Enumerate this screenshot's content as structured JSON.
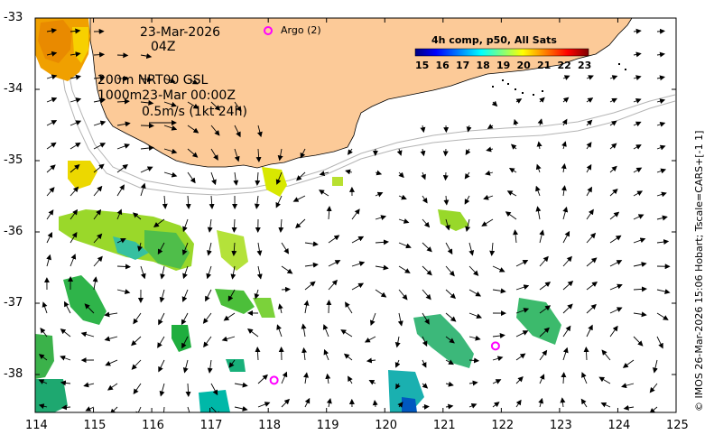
{
  "map": {
    "date_label": "23-Mar-2026",
    "time_label": "04Z",
    "depth_line": "200m  NRT00 GSL",
    "depth_line2": "1000m23-Mar 00:00Z",
    "scale_label": "0.5m/s (1kt 24h)",
    "argo_label": "Argo (2)",
    "colorbar_title": "4h comp, p50, All Sats",
    "colorbar_ticks": [
      "15",
      "16",
      "17",
      "18",
      "19",
      "20",
      "21",
      "22",
      "23"
    ],
    "credit": "© IMOS 26-Mar-2026 15:06 Hobart; Tscale=CARS+[-1 1]",
    "lon_ticks": [
      "114",
      "115",
      "116",
      "117",
      "118",
      "119",
      "120",
      "121",
      "122",
      "123",
      "124",
      "125"
    ],
    "lat_ticks": [
      "-33",
      "-34",
      "-35",
      "-36",
      "-37",
      "-38"
    ],
    "colors": {
      "land": "#fcca98",
      "argo": "#ff00ff",
      "isobath": "#b4b4b4",
      "colormap": [
        "#00007f",
        "#0000ff",
        "#007fff",
        "#00ffff",
        "#7fff7f",
        "#ffff00",
        "#ff7f00",
        "#ff0000",
        "#7f0000"
      ]
    },
    "argo_floats": [
      {
        "lon": 118.1,
        "lat": -38.08
      },
      {
        "lon": 121.9,
        "lat": -37.6
      }
    ]
  }
}
